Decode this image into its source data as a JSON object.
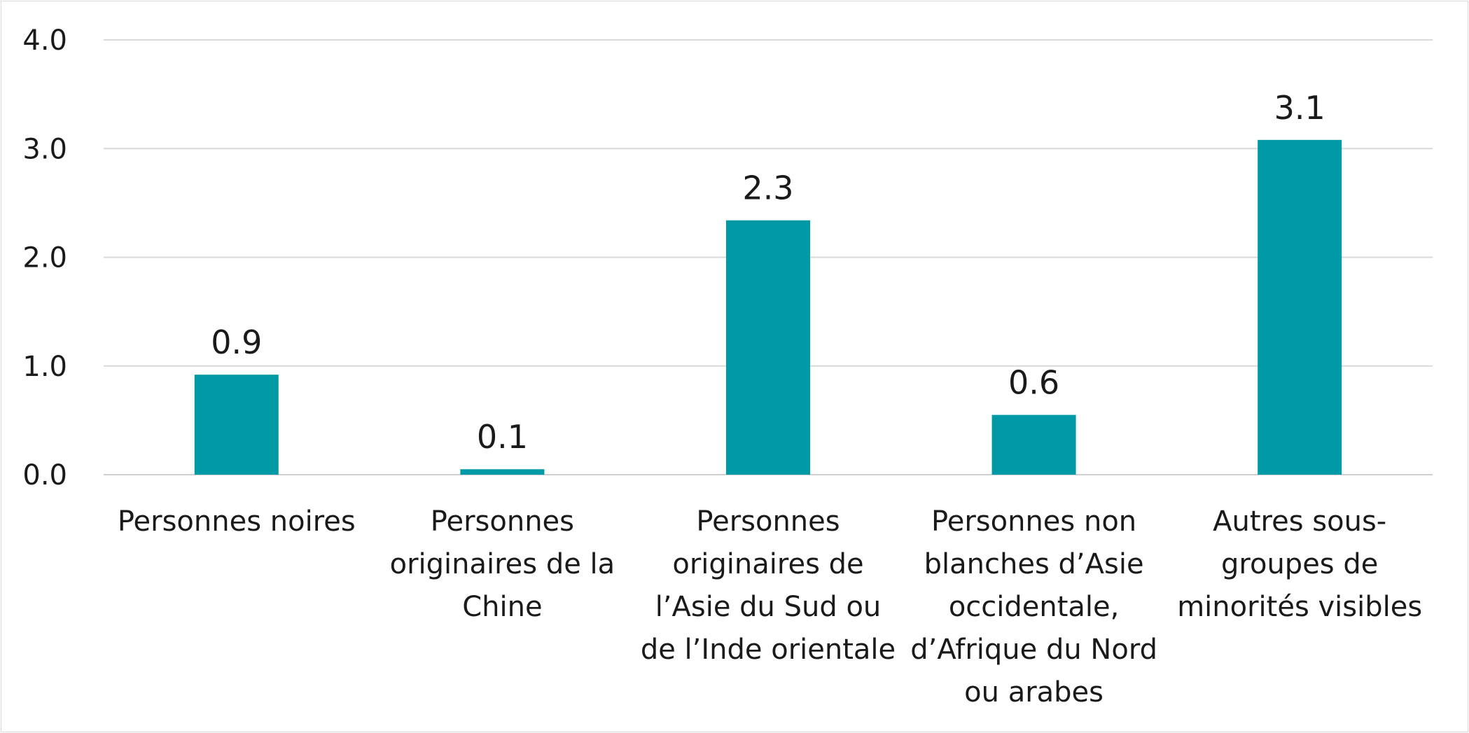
{
  "chart_data": {
    "type": "bar",
    "title": "",
    "xlabel": "",
    "ylabel": "",
    "ylim": [
      0,
      4
    ],
    "yticks": [
      0,
      1,
      2,
      3,
      4
    ],
    "ytick_labels": [
      "0.0",
      "1.0",
      "2.0",
      "3.0",
      "4.0"
    ],
    "grid": true,
    "legend": "none",
    "bar_color": "#009aa6",
    "categories": [
      [
        "Personnes noires"
      ],
      [
        "Personnes",
        "originaires de la",
        "Chine"
      ],
      [
        "Personnes",
        "originaires de",
        "l’Asie du Sud ou",
        "de l’Inde orientale"
      ],
      [
        "Personnes non",
        "blanches d’Asie",
        "occidentale,",
        "d’Afrique du Nord",
        "ou arabes"
      ],
      [
        "Autres sous-",
        "groupes de",
        "minorités visibles"
      ]
    ],
    "values": [
      0.92,
      0.05,
      2.34,
      0.55,
      3.08
    ],
    "data_labels": [
      "0.9",
      "0.1",
      "2.3",
      "0.6",
      "3.1"
    ]
  }
}
